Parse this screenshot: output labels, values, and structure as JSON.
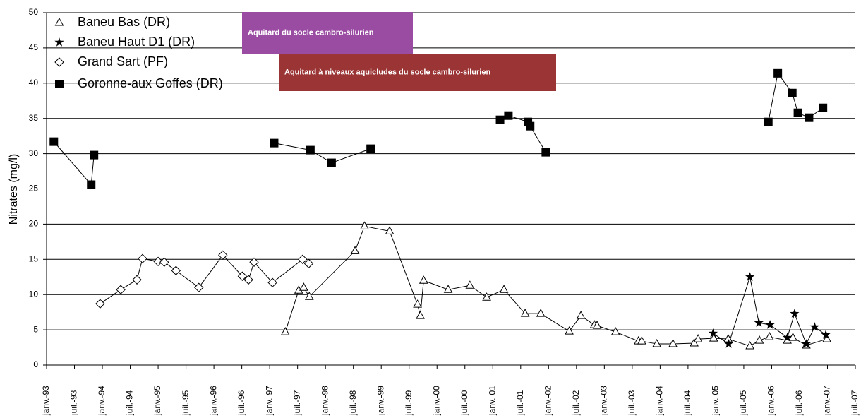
{
  "chart_data": {
    "type": "line",
    "y_label": "Nitrates (mg/l)",
    "xlim": [
      1993,
      2007.5
    ],
    "xticks": [
      {
        "value": 1993,
        "label": "janv.-93"
      },
      {
        "value": 1993.5,
        "label": "juil.-93"
      },
      {
        "value": 1994,
        "label": "janv.-94"
      },
      {
        "value": 1994.5,
        "label": "juil.-94"
      },
      {
        "value": 1995,
        "label": "janv.-95"
      },
      {
        "value": 1995.5,
        "label": "juil.-95"
      },
      {
        "value": 1996,
        "label": "janv.-96"
      },
      {
        "value": 1996.5,
        "label": "juil.-96"
      },
      {
        "value": 1997,
        "label": "janv.-97"
      },
      {
        "value": 1997.5,
        "label": "juil.-97"
      },
      {
        "value": 1998,
        "label": "janv.-98"
      },
      {
        "value": 1998.5,
        "label": "juil.-98"
      },
      {
        "value": 1999,
        "label": "janv.-99"
      },
      {
        "value": 1999.5,
        "label": "juil.-99"
      },
      {
        "value": 2000,
        "label": "janv.-00"
      },
      {
        "value": 2000.5,
        "label": "juil.-00"
      },
      {
        "value": 2001,
        "label": "janv.-01"
      },
      {
        "value": 2001.5,
        "label": "juil.-01"
      },
      {
        "value": 2002,
        "label": "janv.-02"
      },
      {
        "value": 2002.5,
        "label": "juil.-02"
      },
      {
        "value": 2003,
        "label": "janv.-03"
      },
      {
        "value": 2003.5,
        "label": "juil.-03"
      },
      {
        "value": 2004,
        "label": "janv.-04"
      },
      {
        "value": 2004.5,
        "label": "juil.-04"
      },
      {
        "value": 2005,
        "label": "janv.-05"
      },
      {
        "value": 2005.5,
        "label": "juil.-05"
      },
      {
        "value": 2006,
        "label": "janv.-06"
      },
      {
        "value": 2006.5,
        "label": "juil.-06"
      },
      {
        "value": 2007,
        "label": "janv.-07"
      },
      {
        "value": 2007.5,
        "label": "juil.-07"
      }
    ],
    "ylim": [
      0,
      50
    ],
    "yticks": [
      0,
      5,
      10,
      15,
      20,
      25,
      30,
      35,
      40,
      45,
      50
    ],
    "grid": true,
    "legend": "top-left",
    "annotations": [
      {
        "text": "Aquitard du socle cambro-silurien",
        "color": "#9a4ca2"
      },
      {
        "text": "Aquitard à niveaux aquicludes du socle cambro-silurien",
        "color": "#9b3434"
      }
    ],
    "series": [
      {
        "name": "Baneu Bas (DR)",
        "marker": "triangle",
        "color": "#000000",
        "x": [
          1997.28,
          1997.52,
          1997.61,
          1997.71,
          1998.53,
          1998.7,
          1999.15,
          1999.65,
          1999.7,
          1999.76,
          2000.2,
          2000.59,
          2000.89,
          2001.2,
          2001.58,
          2001.86,
          2002.37,
          2002.58,
          2002.82,
          2002.87,
          2003.2,
          2003.61,
          2003.67,
          2003.94,
          2004.23,
          2004.61,
          2004.68,
          2004.96,
          2005.22,
          2005.61,
          2005.78,
          2005.96,
          2006.28,
          2006.38,
          2006.62,
          2006.99
        ],
        "values": [
          4.7,
          10.6,
          11.0,
          9.7,
          16.2,
          19.7,
          19.0,
          8.6,
          7.0,
          12.0,
          10.7,
          11.3,
          9.6,
          10.7,
          7.3,
          7.3,
          4.8,
          7.0,
          5.7,
          5.6,
          4.7,
          3.4,
          3.4,
          3.0,
          3.0,
          3.1,
          3.7,
          3.8,
          3.7,
          2.7,
          3.5,
          4.0,
          3.5,
          3.9,
          2.8,
          3.7
        ]
      },
      {
        "name": "Baneu Haut D1 (DR)",
        "marker": "star",
        "color": "#000000",
        "x": [
          2004.95,
          2005.23,
          2005.61,
          2005.77,
          2005.97,
          2006.28,
          2006.41,
          2006.62,
          2006.77,
          2006.97
        ],
        "values": [
          4.5,
          3.0,
          12.5,
          6.0,
          5.7,
          3.9,
          7.3,
          3.0,
          5.4,
          4.3
        ]
      },
      {
        "name": "Grand Sart (PF)",
        "marker": "diamond",
        "color": "#000000",
        "x": [
          1993.96,
          1994.33,
          1994.62,
          1994.72,
          1995.0,
          1995.11,
          1995.32,
          1995.73,
          1996.16,
          1996.51,
          1996.62,
          1996.72,
          1997.05,
          1997.59,
          1997.7
        ],
        "values": [
          8.7,
          10.7,
          12.1,
          15.1,
          14.7,
          14.6,
          13.4,
          11.0,
          15.6,
          12.6,
          12.1,
          14.6,
          11.7,
          15.0,
          14.4
        ]
      },
      {
        "name": "Goronne-aux Goffes (DR)",
        "marker": "square",
        "color": "#000000",
        "x": [
          1993.13,
          1993.8,
          1993.85,
          null,
          1997.08,
          1997.73,
          1998.11,
          1998.81,
          null,
          2001.13,
          2001.28,
          2001.63,
          2001.67,
          2001.95,
          null,
          2005.94,
          2006.11,
          2006.37,
          2006.47,
          2006.67,
          2006.92
        ],
        "values": [
          31.7,
          25.6,
          29.8,
          null,
          31.5,
          30.5,
          28.7,
          30.7,
          null,
          34.8,
          35.4,
          34.5,
          33.9,
          30.2,
          null,
          34.5,
          41.4,
          38.6,
          35.8,
          35.1,
          36.5
        ]
      }
    ]
  }
}
